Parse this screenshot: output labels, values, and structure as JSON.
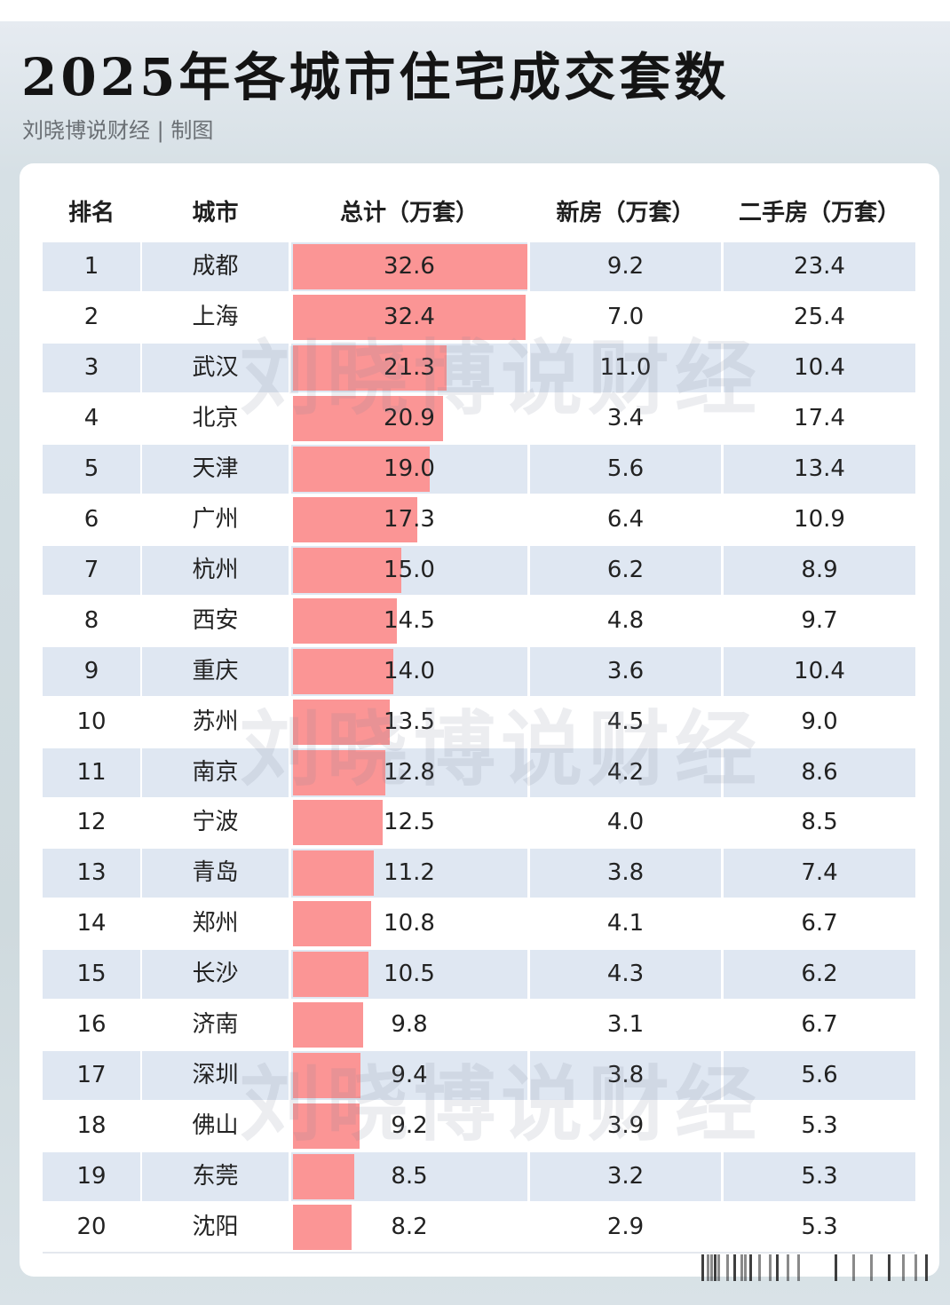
{
  "header": {
    "title": "2025年各城市住宅成交套数",
    "subtitle": "刘晓博说财经 | 制图"
  },
  "watermark": "刘晓博说财经",
  "table": {
    "columns": [
      "排名",
      "城市",
      "总计（万套）",
      "新房（万套）",
      "二手房（万套）"
    ],
    "rows": [
      {
        "rank": "1",
        "city": "成都",
        "total": "32.6",
        "new": "9.2",
        "second": "23.4"
      },
      {
        "rank": "2",
        "city": "上海",
        "total": "32.4",
        "new": "7.0",
        "second": "25.4"
      },
      {
        "rank": "3",
        "city": "武汉",
        "total": "21.3",
        "new": "11.0",
        "second": "10.4"
      },
      {
        "rank": "4",
        "city": "北京",
        "total": "20.9",
        "new": "3.4",
        "second": "17.4"
      },
      {
        "rank": "5",
        "city": "天津",
        "total": "19.0",
        "new": "5.6",
        "second": "13.4"
      },
      {
        "rank": "6",
        "city": "广州",
        "total": "17.3",
        "new": "6.4",
        "second": "10.9"
      },
      {
        "rank": "7",
        "city": "杭州",
        "total": "15.0",
        "new": "6.2",
        "second": "8.9"
      },
      {
        "rank": "8",
        "city": "西安",
        "total": "14.5",
        "new": "4.8",
        "second": "9.7"
      },
      {
        "rank": "9",
        "city": "重庆",
        "total": "14.0",
        "new": "3.6",
        "second": "10.4"
      },
      {
        "rank": "10",
        "city": "苏州",
        "total": "13.5",
        "new": "4.5",
        "second": "9.0"
      },
      {
        "rank": "11",
        "city": "南京",
        "total": "12.8",
        "new": "4.2",
        "second": "8.6"
      },
      {
        "rank": "12",
        "city": "宁波",
        "total": "12.5",
        "new": "4.0",
        "second": "8.5"
      },
      {
        "rank": "13",
        "city": "青岛",
        "total": "11.2",
        "new": "3.8",
        "second": "7.4"
      },
      {
        "rank": "14",
        "city": "郑州",
        "total": "10.8",
        "new": "4.1",
        "second": "6.7"
      },
      {
        "rank": "15",
        "city": "长沙",
        "total": "10.5",
        "new": "4.3",
        "second": "6.2"
      },
      {
        "rank": "16",
        "city": "济南",
        "total": "9.8",
        "new": "3.1",
        "second": "6.7"
      },
      {
        "rank": "17",
        "city": "深圳",
        "total": "9.4",
        "new": "3.8",
        "second": "5.6"
      },
      {
        "rank": "18",
        "city": "佛山",
        "total": "9.2",
        "new": "3.9",
        "second": "5.3"
      },
      {
        "rank": "19",
        "city": "东莞",
        "total": "8.5",
        "new": "3.2",
        "second": "5.3"
      },
      {
        "rank": "20",
        "city": "沈阳",
        "total": "8.2",
        "new": "2.9",
        "second": "5.3"
      }
    ]
  },
  "colors": {
    "bar": "#fb9595",
    "row_shade": "#dfe7f2",
    "card": "#ffffff"
  },
  "chart_data": {
    "type": "table",
    "title": "2025年各城市住宅成交套数",
    "subtitle": "刘晓博说财经 | 制图",
    "categories": [
      "成都",
      "上海",
      "武汉",
      "北京",
      "天津",
      "广州",
      "杭州",
      "西安",
      "重庆",
      "苏州",
      "南京",
      "宁波",
      "青岛",
      "郑州",
      "长沙",
      "济南",
      "深圳",
      "佛山",
      "东莞",
      "沈阳"
    ],
    "series": [
      {
        "name": "总计（万套）",
        "values": [
          32.6,
          32.4,
          21.3,
          20.9,
          19.0,
          17.3,
          15.0,
          14.5,
          14.0,
          13.5,
          12.8,
          12.5,
          11.2,
          10.8,
          10.5,
          9.8,
          9.4,
          9.2,
          8.5,
          8.2
        ]
      },
      {
        "name": "新房（万套）",
        "values": [
          9.2,
          7.0,
          11.0,
          3.4,
          5.6,
          6.4,
          6.2,
          4.8,
          3.6,
          4.5,
          4.2,
          4.0,
          3.8,
          4.1,
          4.3,
          3.1,
          3.8,
          3.9,
          3.2,
          2.9
        ]
      },
      {
        "name": "二手房（万套）",
        "values": [
          23.4,
          25.4,
          10.4,
          17.4,
          13.4,
          10.9,
          8.9,
          9.7,
          10.4,
          9.0,
          8.6,
          8.5,
          7.4,
          6.7,
          6.2,
          6.7,
          5.6,
          5.3,
          5.3,
          5.3
        ]
      }
    ],
    "data_bars": {
      "column": "总计（万套）",
      "max": 32.6,
      "color": "#fb9595"
    },
    "xlabel": "城市",
    "ylabel": "万套"
  }
}
